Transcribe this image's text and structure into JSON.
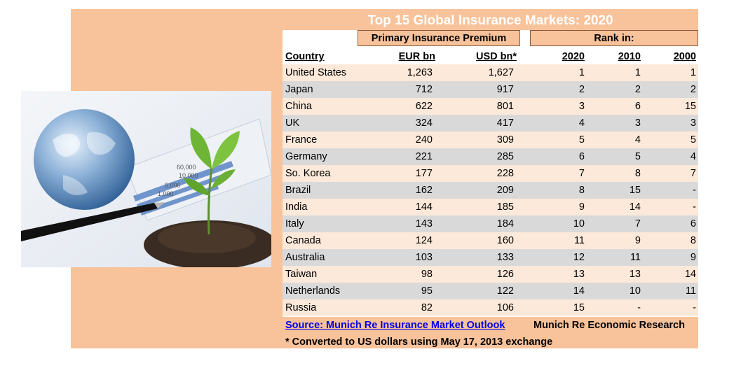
{
  "title": "Top 15 Global Insurance Markets: 2020",
  "groups": {
    "premium": "Primary Insurance Premium",
    "rank": "Rank in:"
  },
  "headers": {
    "country": "Country",
    "eur": "EUR bn",
    "usd": "USD bn*",
    "r2020": "2020",
    "r2010": "2010",
    "r2000": "2000"
  },
  "rows": [
    {
      "country": "United States",
      "eur": "1,263",
      "usd": "1,627",
      "r2020": "1",
      "r2010": "1",
      "r2000": "1"
    },
    {
      "country": "Japan",
      "eur": "712",
      "usd": "917",
      "r2020": "2",
      "r2010": "2",
      "r2000": "2"
    },
    {
      "country": "China",
      "eur": "622",
      "usd": "801",
      "r2020": "3",
      "r2010": "6",
      "r2000": "15"
    },
    {
      "country": "UK",
      "eur": "324",
      "usd": "417",
      "r2020": "4",
      "r2010": "3",
      "r2000": "3"
    },
    {
      "country": "France",
      "eur": "240",
      "usd": "309",
      "r2020": "5",
      "r2010": "4",
      "r2000": "5"
    },
    {
      "country": "Germany",
      "eur": "221",
      "usd": "285",
      "r2020": "6",
      "r2010": "5",
      "r2000": "4"
    },
    {
      "country": "So. Korea",
      "eur": "177",
      "usd": "228",
      "r2020": "7",
      "r2010": "8",
      "r2000": "7"
    },
    {
      "country": "Brazil",
      "eur": "162",
      "usd": "209",
      "r2020": "8",
      "r2010": "15",
      "r2000": "-"
    },
    {
      "country": "India",
      "eur": "144",
      "usd": "185",
      "r2020": "9",
      "r2010": "14",
      "r2000": "-"
    },
    {
      "country": "Italy",
      "eur": "143",
      "usd": "184",
      "r2020": "10",
      "r2010": "7",
      "r2000": "6"
    },
    {
      "country": "Canada",
      "eur": "124",
      "usd": "160",
      "r2020": "11",
      "r2010": "9",
      "r2000": "8"
    },
    {
      "country": "Australia",
      "eur": "103",
      "usd": "133",
      "r2020": "12",
      "r2010": "11",
      "r2000": "9"
    },
    {
      "country": "Taiwan",
      "eur": "98",
      "usd": "126",
      "r2020": "13",
      "r2010": "13",
      "r2000": "14"
    },
    {
      "country": "Netherlands",
      "eur": "95",
      "usd": "122",
      "r2020": "14",
      "r2010": "10",
      "r2000": "11"
    },
    {
      "country": "Russia",
      "eur": "82",
      "usd": "106",
      "r2020": "15",
      "r2010": "-",
      "r2000": "-"
    }
  ],
  "source": {
    "link_text": "Source: Munich Re Insurance Market Outlook",
    "org": "Munich Re Economic Research"
  },
  "footnote": "* Converted to US dollars using May 17, 2013 exchange",
  "colors": {
    "panel": "#f8c29a",
    "row_odd": "#fde9d9",
    "row_even": "#d9d9d9",
    "title_text": "#ffffff",
    "link": "#0000ee"
  },
  "image": {
    "icons": [
      "globe-icon",
      "plant-sprout-icon",
      "pen-icon",
      "financial-chart-icon"
    ],
    "chart_numbers": [
      "60,000",
      "10,000",
      "5,000",
      "1,000"
    ]
  }
}
